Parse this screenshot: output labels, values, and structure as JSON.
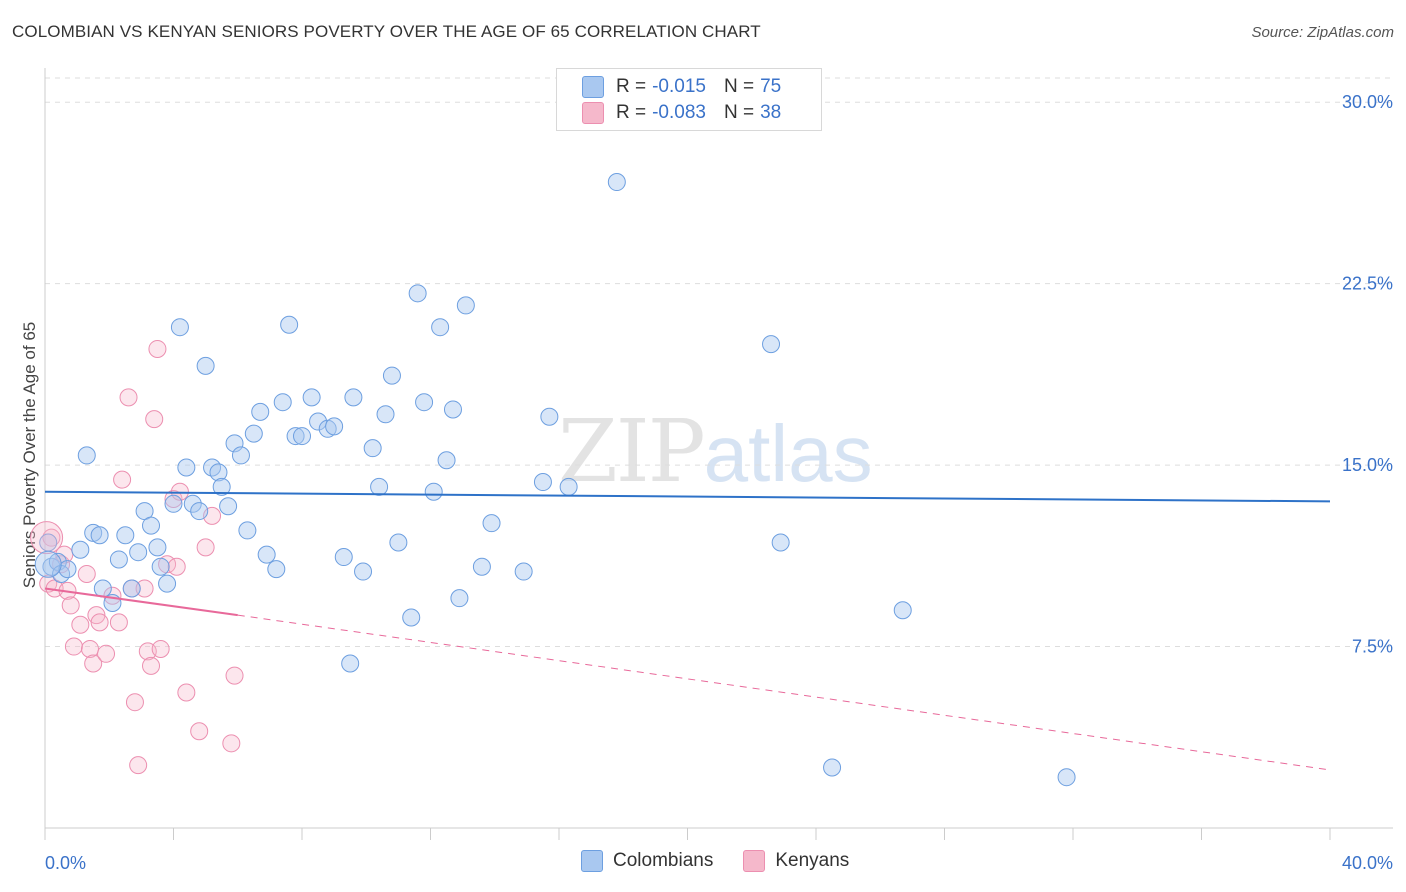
{
  "header": {
    "title": "COLOMBIAN VS KENYAN SENIORS POVERTY OVER THE AGE OF 65 CORRELATION CHART",
    "source": "Source: ZipAtlas.com"
  },
  "watermark": {
    "zip": "ZIP",
    "atlas": "atlas"
  },
  "legend_top": {
    "rows": [
      {
        "r_label": "R =",
        "r_value": "-0.015",
        "n_label": "N =",
        "n_value": "75",
        "color": "#a9c8f0"
      },
      {
        "r_label": "R =",
        "r_value": "-0.083",
        "n_label": "N =",
        "n_value": "38",
        "color": "#f5b8cb"
      }
    ]
  },
  "legend_bottom": {
    "items": [
      {
        "label": "Colombians",
        "color": "#a9c8f0"
      },
      {
        "label": "Kenyans",
        "color": "#f5b8cb"
      }
    ]
  },
  "chart_data": {
    "type": "scatter",
    "title": "COLOMBIAN VS KENYAN SENIORS POVERTY OVER THE AGE OF 65 CORRELATION CHART",
    "xlabel": "",
    "ylabel": "Seniors Poverty Over the Age of 65",
    "xlim": [
      0,
      40
    ],
    "ylim": [
      0,
      31
    ],
    "x_tick_labels": [
      "0.0%",
      "40.0%"
    ],
    "y_ticks": [
      7.5,
      15.0,
      22.5,
      30.0
    ],
    "y_tick_labels": [
      "7.5%",
      "15.0%",
      "22.5%",
      "30.0%"
    ],
    "grid": "horizontal dashed",
    "legend_placement": "top-center",
    "colors": {
      "colombians": "#6d9fe0",
      "kenyans": "#ec8fb0",
      "colombians_line": "#2e72c8",
      "kenyans_line": "#e8699a"
    },
    "series": [
      {
        "name": "Colombians",
        "trend": {
          "x": [
            0,
            40
          ],
          "y": [
            13.9,
            13.5
          ],
          "style": "solid"
        },
        "points": [
          [
            0.2,
            10.8
          ],
          [
            0.4,
            11.0
          ],
          [
            0.5,
            10.5
          ],
          [
            0.7,
            10.7
          ],
          [
            1.1,
            11.5
          ],
          [
            1.3,
            15.4
          ],
          [
            1.5,
            12.2
          ],
          [
            1.7,
            12.1
          ],
          [
            1.8,
            9.9
          ],
          [
            2.1,
            9.3
          ],
          [
            2.3,
            11.1
          ],
          [
            2.5,
            12.1
          ],
          [
            2.7,
            9.9
          ],
          [
            2.9,
            11.4
          ],
          [
            3.1,
            13.1
          ],
          [
            3.3,
            12.5
          ],
          [
            3.5,
            11.6
          ],
          [
            3.6,
            10.8
          ],
          [
            3.8,
            10.1
          ],
          [
            4.0,
            13.4
          ],
          [
            4.2,
            20.7
          ],
          [
            4.4,
            14.9
          ],
          [
            4.6,
            13.4
          ],
          [
            4.8,
            13.1
          ],
          [
            5.0,
            19.1
          ],
          [
            5.2,
            14.9
          ],
          [
            5.4,
            14.7
          ],
          [
            5.5,
            14.1
          ],
          [
            5.7,
            13.3
          ],
          [
            5.9,
            15.9
          ],
          [
            6.1,
            15.4
          ],
          [
            6.3,
            12.3
          ],
          [
            6.5,
            16.3
          ],
          [
            6.7,
            17.2
          ],
          [
            6.9,
            11.3
          ],
          [
            7.2,
            10.7
          ],
          [
            7.4,
            17.6
          ],
          [
            7.6,
            20.8
          ],
          [
            7.8,
            16.2
          ],
          [
            8.0,
            16.2
          ],
          [
            8.3,
            17.8
          ],
          [
            8.5,
            16.8
          ],
          [
            8.8,
            16.5
          ],
          [
            9.0,
            16.6
          ],
          [
            9.3,
            11.2
          ],
          [
            9.6,
            17.8
          ],
          [
            9.9,
            10.6
          ],
          [
            10.2,
            15.7
          ],
          [
            10.4,
            14.1
          ],
          [
            10.6,
            17.1
          ],
          [
            10.8,
            18.7
          ],
          [
            11.0,
            11.8
          ],
          [
            11.4,
            8.7
          ],
          [
            11.6,
            22.1
          ],
          [
            11.8,
            17.6
          ],
          [
            12.1,
            13.9
          ],
          [
            12.3,
            20.7
          ],
          [
            12.5,
            15.2
          ],
          [
            12.7,
            17.3
          ],
          [
            12.9,
            9.5
          ],
          [
            13.1,
            21.6
          ],
          [
            13.6,
            10.8
          ],
          [
            13.9,
            12.6
          ],
          [
            14.9,
            10.6
          ],
          [
            15.5,
            14.3
          ],
          [
            15.7,
            17.0
          ],
          [
            16.3,
            14.1
          ],
          [
            17.8,
            26.7
          ],
          [
            9.5,
            6.8
          ],
          [
            22.6,
            20.0
          ],
          [
            22.9,
            11.8
          ],
          [
            24.5,
            2.5
          ],
          [
            26.7,
            9.0
          ],
          [
            31.8,
            2.1
          ],
          [
            0.1,
            11.8
          ]
        ]
      },
      {
        "name": "Kenyans",
        "trend": {
          "x": [
            0,
            6,
            40
          ],
          "y": [
            9.9,
            8.8,
            2.4
          ],
          "solid_until": 6,
          "style": "solid then dashed"
        },
        "points": [
          [
            0.1,
            10.1
          ],
          [
            0.2,
            12.0
          ],
          [
            0.3,
            9.9
          ],
          [
            0.5,
            10.9
          ],
          [
            0.6,
            11.3
          ],
          [
            0.7,
            9.8
          ],
          [
            0.8,
            9.2
          ],
          [
            0.9,
            7.5
          ],
          [
            1.1,
            8.4
          ],
          [
            1.3,
            10.5
          ],
          [
            1.4,
            7.4
          ],
          [
            1.5,
            6.8
          ],
          [
            1.6,
            8.8
          ],
          [
            1.7,
            8.5
          ],
          [
            1.9,
            7.2
          ],
          [
            2.1,
            9.6
          ],
          [
            2.3,
            8.5
          ],
          [
            2.4,
            14.4
          ],
          [
            2.6,
            17.8
          ],
          [
            2.7,
            9.9
          ],
          [
            2.8,
            5.2
          ],
          [
            2.9,
            2.6
          ],
          [
            3.1,
            9.9
          ],
          [
            3.2,
            7.3
          ],
          [
            3.3,
            6.7
          ],
          [
            3.4,
            16.9
          ],
          [
            3.5,
            19.8
          ],
          [
            3.6,
            7.4
          ],
          [
            3.8,
            10.9
          ],
          [
            4.0,
            13.6
          ],
          [
            4.1,
            10.8
          ],
          [
            4.2,
            13.9
          ],
          [
            4.4,
            5.6
          ],
          [
            4.8,
            4.0
          ],
          [
            5.0,
            11.6
          ],
          [
            5.2,
            12.9
          ],
          [
            5.8,
            3.5
          ],
          [
            5.9,
            6.3
          ]
        ]
      }
    ]
  }
}
